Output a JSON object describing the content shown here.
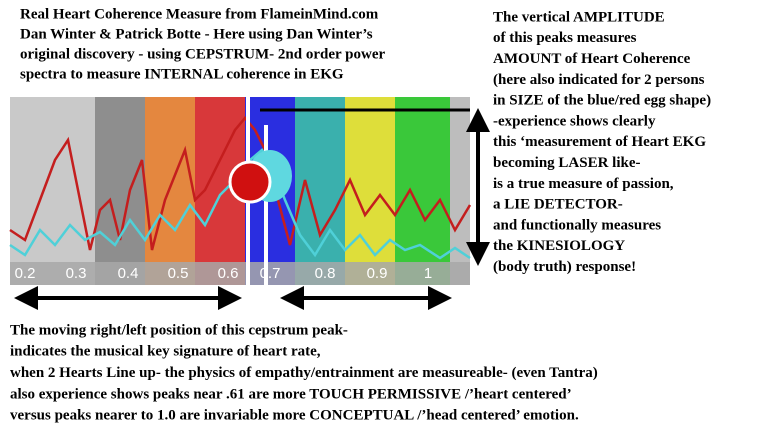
{
  "header": {
    "lines": [
      "Real Heart Coherence Measure from FlameinMind.com",
      "Dan Winter & Patrick Botte - Here using Dan Winter’s",
      "original discovery - using CEPSTRUM- 2nd order power",
      "spectra to measure INTERNAL coherence in EKG"
    ]
  },
  "side_note": {
    "lines": [
      "The vertical AMPLITUDE",
      "of this peaks measures",
      "AMOUNT of Heart Coherence",
      "(here also indicated for 2 persons",
      "in SIZE of the blue/red egg shape)",
      "-experience shows clearly",
      "this ‘measurement of Heart EKG",
      "becoming LASER like-",
      "is a true measure of passion,",
      "a LIE DETECTOR-",
      "and functionally measures",
      "the KINESIOLOGY",
      "(body truth) response!"
    ]
  },
  "axis": {
    "ticks": [
      "0.2",
      "0.3",
      "0.4",
      "0.5",
      "0.6",
      "0.7",
      "0.8",
      "0.9",
      "1"
    ]
  },
  "footer": {
    "lines": [
      "The moving right/left position of this cepstrum peak-",
      "indicates the musical key signature of heart rate,",
      "when 2 Hearts Line up- the physics of empathy/entrainment are measureable- (even Tantra)",
      "also experience shows peaks near .61 are more TOUCH PERMISSIVE /’heart centered’",
      "versus peaks nearer to 1.0 are invariable more CONCEPTUAL /’head centered’ emotion."
    ]
  }
}
